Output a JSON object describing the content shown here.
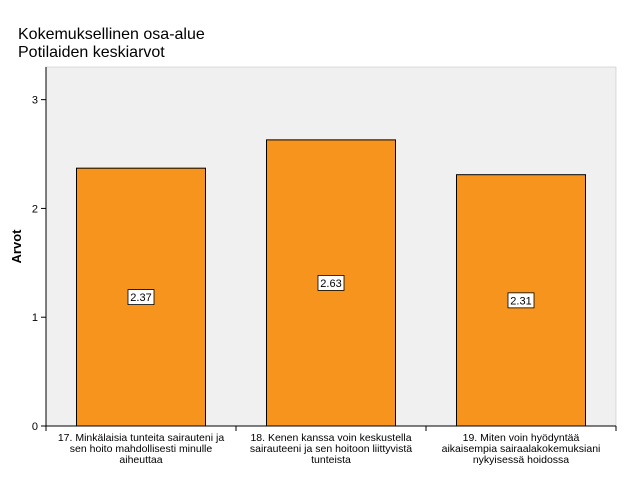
{
  "chart_data": {
    "type": "bar",
    "title": "Kokemuksellinen osa-alue",
    "subtitle": "Potilaiden keskiarvot",
    "xlabel": "",
    "ylabel": "Arvot",
    "ylim": [
      0,
      3.3
    ],
    "yticks": [
      0,
      1,
      2,
      3
    ],
    "ytick_labels": [
      "0",
      "1",
      "2",
      "3"
    ],
    "grid": false,
    "categories": [
      [
        "17. Minkälaisia tunteita sairauteni ja",
        "sen hoito mahdollisesti minulle",
        "aiheuttaa"
      ],
      [
        "18. Kenen kanssa voin keskustella",
        "sairauteeni ja sen hoitoon liittyvistä",
        "tunteista"
      ],
      [
        "19. Miten voin hyödyntää",
        "aikaisempia sairaalakokemuksiani",
        "nykyisessä hoidossa"
      ]
    ],
    "values": [
      2.37,
      2.63,
      2.31
    ],
    "data_labels": [
      "2.37",
      "2.63",
      "2.31"
    ],
    "colors": {
      "bar": "#F7941D",
      "bar_edge": "#000000",
      "plot_bg": "#F0F0F0",
      "axis": "#000000"
    }
  }
}
